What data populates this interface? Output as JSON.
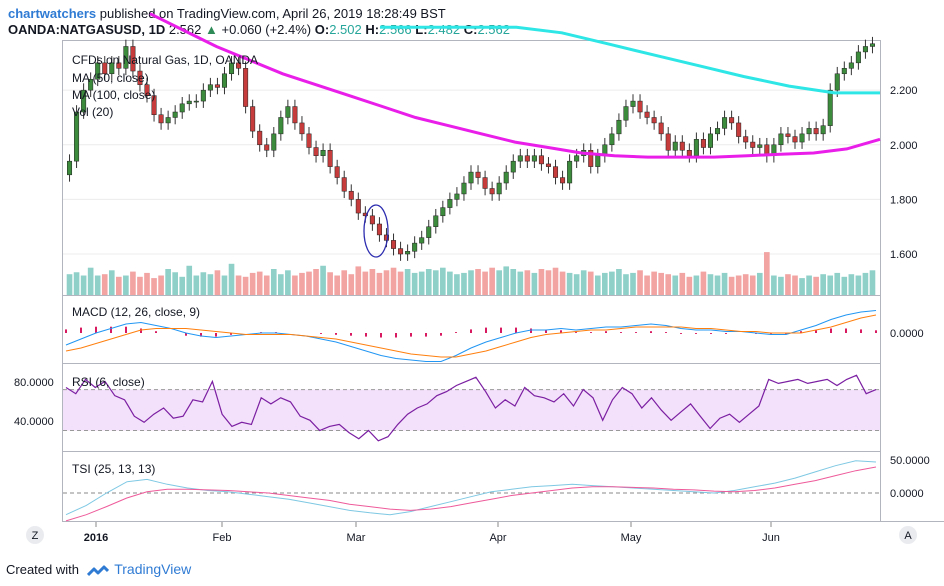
{
  "header": {
    "username": "chartwatchers",
    "published_text": "published on TradingView.com, April 26, 2019 18:28:49 BST",
    "symbol": "OANDA:NATGASUSD, 1D",
    "last": "2.562",
    "change_arrow": "▲",
    "change": "+0.060 (+2.4%)",
    "open_label": "O:",
    "open": "2.502",
    "high_label": "H:",
    "high": "2.566",
    "low_label": "L:",
    "low": "2.482",
    "close_label": "C:",
    "close": "2.562"
  },
  "footer": {
    "created_with": "Created with",
    "brand": "TradingView"
  },
  "buttons": {
    "zoom": "Z",
    "auto": "A"
  },
  "colors": {
    "up": "#26a69a",
    "down": "#ef5350",
    "candle_body": "#3c8a3c",
    "candle_down": "#c63b3b",
    "ma50": "#e91ee9",
    "ma100": "#2ee6e6",
    "macd": "#2196f3",
    "signal": "#ff7f0e",
    "rsi": "#7b1fa2",
    "rsi_band": "#f3e0fa",
    "tsi": "#7ec8e3",
    "tsi_signal": "#ee5a9a",
    "grid": "#e6e6e6",
    "accent": "#2f7bd4"
  },
  "chart_data": [
    {
      "type": "candlestick",
      "title": "CFDs on Natural Gas, 1D, OANDA",
      "indicators": [
        "MA (50, close)",
        "MA (100, close)",
        "Vol (20)"
      ],
      "x_labels": [
        "2016",
        "Feb",
        "Mar",
        "Apr",
        "May",
        "Jun"
      ],
      "y_ticks": [
        "2.200",
        "2.000",
        "1.800",
        "1.600"
      ],
      "ylim": [
        1.45,
        2.38
      ],
      "annotation": "ellipse around early-March low",
      "close_series": [
        1.94,
        2.12,
        2.2,
        2.24,
        2.3,
        2.26,
        2.3,
        2.28,
        2.36,
        2.27,
        2.22,
        2.18,
        2.11,
        2.08,
        2.1,
        2.12,
        2.15,
        2.16,
        2.16,
        2.2,
        2.22,
        2.21,
        2.26,
        2.3,
        2.28,
        2.14,
        2.05,
        2.0,
        1.98,
        2.04,
        2.1,
        2.14,
        2.08,
        2.04,
        1.99,
        1.96,
        1.98,
        1.92,
        1.88,
        1.83,
        1.8,
        1.75,
        1.74,
        1.71,
        1.67,
        1.65,
        1.62,
        1.6,
        1.61,
        1.64,
        1.66,
        1.7,
        1.74,
        1.77,
        1.8,
        1.82,
        1.86,
        1.9,
        1.88,
        1.84,
        1.82,
        1.86,
        1.9,
        1.94,
        1.96,
        1.94,
        1.96,
        1.93,
        1.92,
        1.88,
        1.86,
        1.94,
        1.96,
        1.98,
        1.92,
        1.96,
        2.0,
        2.04,
        2.09,
        2.14,
        2.16,
        2.12,
        2.1,
        2.08,
        2.04,
        1.98,
        2.01,
        1.98,
        1.96,
        2.02,
        1.99,
        2.04,
        2.06,
        2.1,
        2.08,
        2.03,
        2.01,
        1.99,
        2.0,
        1.96,
        2.0,
        2.04,
        2.03,
        2.01,
        2.04,
        2.06,
        2.04,
        2.07,
        2.2,
        2.26,
        2.28,
        2.3,
        2.34,
        2.36,
        2.37
      ],
      "ma50": [
        2.48,
        2.42,
        2.36,
        2.31,
        2.26,
        2.22,
        2.18,
        2.14,
        2.1,
        2.07,
        2.04,
        2.01,
        1.99,
        1.97,
        1.96,
        1.955,
        1.955,
        1.955,
        1.96,
        1.965,
        1.97,
        1.985,
        2.02
      ],
      "ma100": [
        2.55,
        2.52,
        2.49,
        2.45,
        2.41,
        2.37,
        2.33,
        2.29,
        2.25,
        2.215,
        2.19,
        2.19
      ],
      "volume": [
        0.32,
        0.35,
        0.3,
        0.42,
        0.3,
        0.32,
        0.38,
        0.28,
        0.3,
        0.36,
        0.28,
        0.34,
        0.26,
        0.3,
        0.4,
        0.35,
        0.28,
        0.45,
        0.3,
        0.35,
        0.32,
        0.38,
        0.3,
        0.48,
        0.3,
        0.28,
        0.34,
        0.36,
        0.3,
        0.4,
        0.32,
        0.38,
        0.3,
        0.34,
        0.36,
        0.4,
        0.45,
        0.35,
        0.3,
        0.38,
        0.32,
        0.44,
        0.36,
        0.4,
        0.34,
        0.38,
        0.42,
        0.36,
        0.4,
        0.34,
        0.36,
        0.4,
        0.38,
        0.42,
        0.36,
        0.32,
        0.34,
        0.38,
        0.4,
        0.36,
        0.42,
        0.38,
        0.44,
        0.4,
        0.36,
        0.38,
        0.34,
        0.4,
        0.38,
        0.42,
        0.36,
        0.34,
        0.32,
        0.38,
        0.36,
        0.3,
        0.34,
        0.36,
        0.4,
        0.32,
        0.34,
        0.38,
        0.3,
        0.36,
        0.34,
        0.32,
        0.3,
        0.34,
        0.28,
        0.3,
        0.36,
        0.32,
        0.3,
        0.34,
        0.28,
        0.3,
        0.32,
        0.3,
        0.34,
        0.66,
        0.3,
        0.28,
        0.32,
        0.3,
        0.26,
        0.3,
        0.28,
        0.32,
        0.3,
        0.34,
        0.28,
        0.32,
        0.3,
        0.34,
        0.38
      ]
    },
    {
      "type": "line",
      "title": "MACD (12, 26, close, 9)",
      "y_ticks": [
        "0.0000"
      ],
      "series": [
        {
          "name": "MACD",
          "values": [
            -0.08,
            -0.04,
            0.0,
            0.03,
            0.06,
            0.07,
            0.05,
            0.03,
            0.0,
            -0.02,
            -0.03,
            -0.02,
            -0.01,
            0.0,
            0.0,
            -0.01,
            -0.02,
            -0.04,
            -0.06,
            -0.09,
            -0.12,
            -0.15,
            -0.17,
            -0.18,
            -0.19,
            -0.19,
            -0.15,
            -0.1,
            -0.06,
            -0.03,
            0.0,
            0.02,
            0.02,
            0.03,
            0.02,
            0.03,
            0.04,
            0.04,
            0.05,
            0.06,
            0.05,
            0.03,
            0.02,
            0.02,
            0.01,
            0.01,
            0.0,
            -0.01,
            -0.01,
            0.02,
            0.05,
            0.09,
            0.12,
            0.14,
            0.15
          ]
        },
        {
          "name": "Signal",
          "values": [
            -0.12,
            -0.1,
            -0.07,
            -0.04,
            -0.01,
            0.02,
            0.03,
            0.03,
            0.03,
            0.02,
            0.01,
            0.0,
            -0.01,
            -0.01,
            -0.01,
            -0.01,
            -0.02,
            -0.03,
            -0.04,
            -0.06,
            -0.08,
            -0.1,
            -0.12,
            -0.14,
            -0.15,
            -0.16,
            -0.16,
            -0.14,
            -0.12,
            -0.09,
            -0.06,
            -0.03,
            -0.01,
            0.0,
            0.01,
            0.02,
            0.02,
            0.03,
            0.04,
            0.04,
            0.04,
            0.04,
            0.03,
            0.03,
            0.02,
            0.01,
            0.01,
            0.0,
            0.0,
            0.0,
            0.02,
            0.04,
            0.07,
            0.1,
            0.12
          ]
        }
      ]
    },
    {
      "type": "line",
      "title": "RSI (6, close)",
      "y_ticks": [
        "80.0000",
        "40.0000"
      ],
      "band": [
        30,
        70
      ],
      "values": [
        72,
        66,
        80,
        72,
        78,
        64,
        60,
        44,
        38,
        46,
        52,
        42,
        44,
        60,
        58,
        78,
        46,
        34,
        38,
        36,
        62,
        56,
        62,
        58,
        44,
        40,
        30,
        34,
        36,
        28,
        22,
        30,
        20,
        24,
        36,
        46,
        52,
        56,
        64,
        68,
        74,
        78,
        82,
        68,
        52,
        60,
        54,
        72,
        64,
        62,
        58,
        66,
        54,
        70,
        62,
        40,
        60,
        72,
        66,
        52,
        62,
        50,
        40,
        48,
        56,
        44,
        32,
        42,
        46,
        38,
        46,
        54,
        80,
        76,
        78,
        80,
        76,
        78,
        80,
        74,
        80,
        84,
        66,
        70
      ]
    },
    {
      "type": "line",
      "title": "TSI (25, 13, 13)",
      "y_ticks": [
        "50.0000",
        "0.0000"
      ],
      "series": [
        {
          "name": "TSI",
          "values": [
            -35,
            -20,
            0,
            18,
            22,
            14,
            8,
            4,
            2,
            -2,
            -6,
            -10,
            -16,
            -22,
            -28,
            -32,
            -35,
            -30,
            -22,
            -14,
            -6,
            2,
            6,
            10,
            12,
            14,
            12,
            10,
            8,
            6,
            4,
            2,
            0,
            4,
            10,
            16,
            24,
            34,
            44,
            52,
            50
          ]
        },
        {
          "name": "Signal",
          "values": [
            -45,
            -35,
            -22,
            -8,
            2,
            6,
            6,
            5,
            4,
            2,
            0,
            -4,
            -8,
            -12,
            -18,
            -22,
            -26,
            -28,
            -26,
            -22,
            -16,
            -10,
            -4,
            0,
            4,
            8,
            10,
            10,
            9,
            8,
            6,
            5,
            3,
            2,
            4,
            8,
            14,
            20,
            28,
            36,
            42
          ]
        }
      ]
    }
  ]
}
